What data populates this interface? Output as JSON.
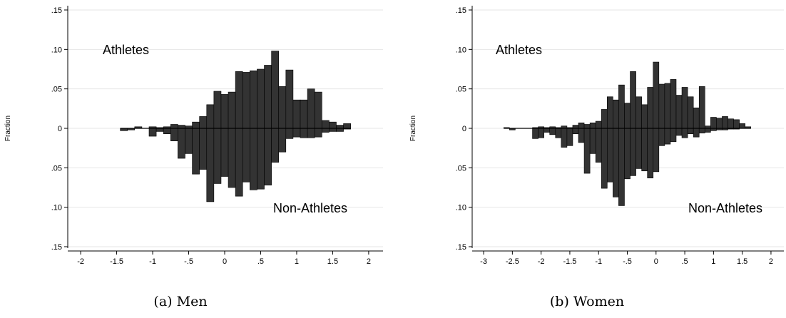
{
  "chart_data": [
    {
      "type": "bar",
      "caption": "(a) Men",
      "ylabel": "Fraction",
      "annotations": {
        "top": "Athletes",
        "bottom": "Non-Athletes"
      },
      "xlim": [
        -2.1,
        2.1
      ],
      "ylim": [
        -0.15,
        0.15
      ],
      "xticks": [
        -2,
        -1.5,
        -1,
        -0.5,
        0,
        0.5,
        1,
        1.5,
        2
      ],
      "xtick_labels": [
        "-2",
        "-1.5",
        "-1",
        "-.5",
        "0",
        ".5",
        "1",
        "1.5",
        "2"
      ],
      "yticks": [
        0.15,
        0.1,
        0.05,
        0,
        -0.05,
        -0.1,
        -0.15
      ],
      "ytick_labels": [
        ".15",
        ".10",
        ".05",
        "0",
        ".05",
        ".10",
        ".15"
      ],
      "bin_width": 0.1,
      "series": [
        {
          "name": "Athletes",
          "direction": "up",
          "x": [
            -1.4,
            -1.3,
            -1.2,
            -1.0,
            -0.9,
            -0.8,
            -0.7,
            -0.6,
            -0.5,
            -0.4,
            -0.3,
            -0.2,
            -0.1,
            0.0,
            0.1,
            0.2,
            0.3,
            0.4,
            0.5,
            0.6,
            0.7,
            0.8,
            0.9,
            1.0,
            1.1,
            1.2,
            1.3,
            1.4,
            1.5,
            1.6,
            1.7
          ],
          "values": [
            -0.003,
            -0.002,
            0.002,
            0.002,
            0.001,
            0.002,
            0.005,
            0.004,
            0.003,
            0.008,
            0.015,
            0.03,
            0.047,
            0.043,
            0.046,
            0.072,
            0.071,
            0.073,
            0.075,
            0.08,
            0.098,
            0.053,
            0.074,
            0.036,
            0.036,
            0.05,
            0.046,
            0.01,
            0.008,
            0.004,
            0.006
          ]
        },
        {
          "name": "Non-Athletes",
          "direction": "down",
          "x": [
            -1.4,
            -1.3,
            -1.2,
            -1.0,
            -0.9,
            -0.8,
            -0.7,
            -0.6,
            -0.5,
            -0.4,
            -0.3,
            -0.2,
            -0.1,
            0.0,
            0.1,
            0.2,
            0.3,
            0.4,
            0.5,
            0.6,
            0.7,
            0.8,
            0.9,
            1.0,
            1.1,
            1.2,
            1.3,
            1.4,
            1.5,
            1.6,
            1.7
          ],
          "values": [
            0.0,
            0.0,
            0.0,
            0.01,
            0.004,
            0.007,
            0.016,
            0.038,
            0.032,
            0.058,
            0.052,
            0.093,
            0.07,
            0.061,
            0.075,
            0.086,
            0.068,
            0.078,
            0.077,
            0.072,
            0.043,
            0.03,
            0.013,
            0.011,
            0.012,
            0.012,
            0.011,
            0.005,
            0.004,
            0.004,
            0.001
          ]
        }
      ]
    },
    {
      "type": "bar",
      "caption": "(b) Women",
      "ylabel": "Fraction",
      "annotations": {
        "top": "Athletes",
        "bottom": "Non-Athletes"
      },
      "xlim": [
        -3.1,
        2.1
      ],
      "ylim": [
        -0.15,
        0.15
      ],
      "xticks": [
        -3,
        -2.5,
        -2,
        -1.5,
        -1,
        -0.5,
        0,
        0.5,
        1,
        1.5,
        2
      ],
      "xtick_labels": [
        "-3",
        "-2.5",
        "-2",
        "-1.5",
        "-1",
        "-.5",
        "0",
        ".5",
        "1",
        "1.5",
        "2"
      ],
      "yticks": [
        0.15,
        0.1,
        0.05,
        0,
        -0.05,
        -0.1,
        -0.15
      ],
      "ytick_labels": [
        ".15",
        ".10",
        ".05",
        "0",
        ".05",
        ".10",
        ".15"
      ],
      "bin_width": 0.1,
      "series": [
        {
          "name": "Athletes",
          "direction": "up",
          "x": [
            -2.6,
            -2.5,
            -2.1,
            -2.0,
            -1.9,
            -1.8,
            -1.7,
            -1.6,
            -1.5,
            -1.4,
            -1.3,
            -1.2,
            -1.1,
            -1.0,
            -0.9,
            -0.8,
            -0.7,
            -0.6,
            -0.5,
            -0.4,
            -0.3,
            -0.2,
            -0.1,
            0.0,
            0.1,
            0.2,
            0.3,
            0.4,
            0.5,
            0.6,
            0.7,
            0.8,
            0.9,
            1.0,
            1.1,
            1.2,
            1.3,
            1.4,
            1.5,
            1.6
          ],
          "values": [
            0.001,
            -0.002,
            0.001,
            0.002,
            0.001,
            0.002,
            0.001,
            0.003,
            0.001,
            0.004,
            0.007,
            0.005,
            0.007,
            0.009,
            0.024,
            0.04,
            0.036,
            0.055,
            0.032,
            0.072,
            0.04,
            0.03,
            0.052,
            0.084,
            0.056,
            0.057,
            0.062,
            0.042,
            0.052,
            0.04,
            0.026,
            0.053,
            0.003,
            0.014,
            0.013,
            0.015,
            0.012,
            0.011,
            0.006,
            0.002
          ]
        },
        {
          "name": "Non-Athletes",
          "direction": "down",
          "x": [
            -2.6,
            -2.5,
            -2.1,
            -2.0,
            -1.9,
            -1.8,
            -1.7,
            -1.6,
            -1.5,
            -1.4,
            -1.3,
            -1.2,
            -1.1,
            -1.0,
            -0.9,
            -0.8,
            -0.7,
            -0.6,
            -0.5,
            -0.4,
            -0.3,
            -0.2,
            -0.1,
            0.0,
            0.1,
            0.2,
            0.3,
            0.4,
            0.5,
            0.6,
            0.7,
            0.8,
            0.9,
            1.0,
            1.1,
            1.2,
            1.3,
            1.4,
            1.5,
            1.6
          ],
          "values": [
            0.0,
            0.0,
            0.013,
            0.012,
            0.005,
            0.008,
            0.012,
            0.024,
            0.022,
            0.007,
            0.018,
            0.057,
            0.032,
            0.043,
            0.076,
            0.068,
            0.087,
            0.098,
            0.064,
            0.06,
            0.051,
            0.054,
            0.063,
            0.055,
            0.022,
            0.02,
            0.017,
            0.009,
            0.012,
            0.007,
            0.011,
            0.006,
            0.005,
            0.003,
            0.002,
            0.002,
            0.001,
            0.001,
            0.0,
            0.0
          ]
        }
      ]
    }
  ]
}
